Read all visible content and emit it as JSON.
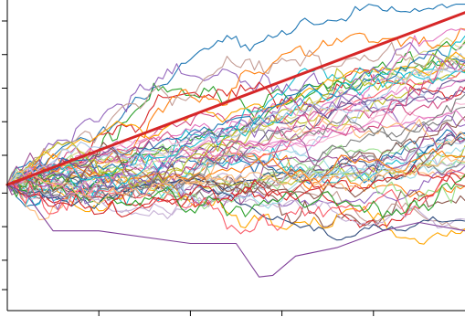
{
  "chart_data": {
    "type": "line",
    "title": "",
    "xlabel": "",
    "ylabel": "",
    "xlim": [
      0,
      100
    ],
    "ylim": [
      -1.5,
      2.2
    ],
    "grid": false,
    "legend": "none",
    "x_ticks": [
      20,
      40,
      60,
      80
    ],
    "y_ticks": [
      -1.25,
      -0.9,
      -0.5,
      -0.1,
      0.35,
      0.75,
      1.15,
      1.55,
      1.95
    ],
    "path_count": 60,
    "path_steps": 100,
    "start_value": 0,
    "trend": {
      "start": 0,
      "end": 2.05,
      "color": "#d62728"
    },
    "annotated_paths": [
      {
        "color": "#7f3f98",
        "points": [
          [
            0,
            0
          ],
          [
            4,
            -0.1
          ],
          [
            10,
            -0.55
          ],
          [
            20,
            -0.55
          ],
          [
            40,
            -0.7
          ],
          [
            50,
            -0.7
          ],
          [
            55,
            -1.1
          ],
          [
            58,
            -1.08
          ],
          [
            63,
            -0.85
          ],
          [
            72,
            -0.75
          ],
          [
            82,
            -0.55
          ],
          [
            90,
            -0.45
          ],
          [
            100,
            -0.55
          ]
        ]
      }
    ],
    "path_palette": [
      "#1f77b4",
      "#ff7f0e",
      "#2ca02c",
      "#8c564b",
      "#e377c2",
      "#7f7f7f",
      "#bcbd22",
      "#17becf",
      "#9467bd",
      "#d62728",
      "#aec7e8",
      "#ffbb78",
      "#98df8a",
      "#c5b0d5",
      "#c49c94",
      "#f7b6d2",
      "#dbdb8d",
      "#9edae5",
      "#2f4b7c",
      "#a05195",
      "#f95d6a",
      "#ffa600",
      "#665191",
      "#d45087"
    ]
  }
}
